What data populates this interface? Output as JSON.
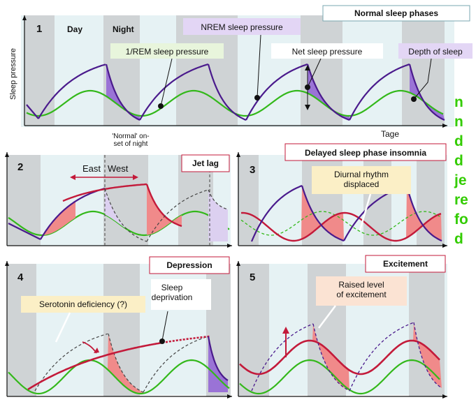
{
  "colors": {
    "night_band": "#cfd3d5",
    "pale_band": "#e6f2f4",
    "nrem": "#4a1a8c",
    "rem": "#33b81a",
    "jet": "#c31a3a",
    "purple_fill": "#9a73d6",
    "pink_fill": "#f08a8a",
    "lavender_fill": "#dcd0f0",
    "label_bg_purple": "#e3d6f5",
    "label_bg_green": "#e8f5dc",
    "label_bg_yellow": "#fbefc6",
    "label_bg_peach": "#fbe3d3",
    "side_text": "#33cc00"
  },
  "panel1": {
    "num": "1",
    "title": "Normal sleep phases",
    "day": "Day",
    "night": "Night",
    "y_axis": "Sleep pressure",
    "x_axis": "Tage",
    "nrem_label": "NREM sleep pressure",
    "rem_label": "1/REM sleep pressure",
    "net_label": "Net sleep pressure",
    "depth_label": "Depth of sleep"
  },
  "onset_label": "'Normal' on-\nset of night",
  "panel2": {
    "num": "2",
    "title": "Jet lag",
    "east": "East",
    "west": "West"
  },
  "panel3": {
    "num": "3",
    "title": "Delayed sleep phase insomnia",
    "label": "Diurnal rhythm\ndisplaced"
  },
  "panel4": {
    "num": "4",
    "title": "Depression",
    "serotonin": "Serotonin deficiency (?)",
    "deprivation": "Sleep\ndeprivation"
  },
  "panel5": {
    "num": "5",
    "title": "Excitement",
    "raised": "Raised level\nof excitement"
  },
  "side_text": [
    "n",
    "n",
    "d",
    "d",
    "je",
    "re",
    "fo",
    "d"
  ]
}
